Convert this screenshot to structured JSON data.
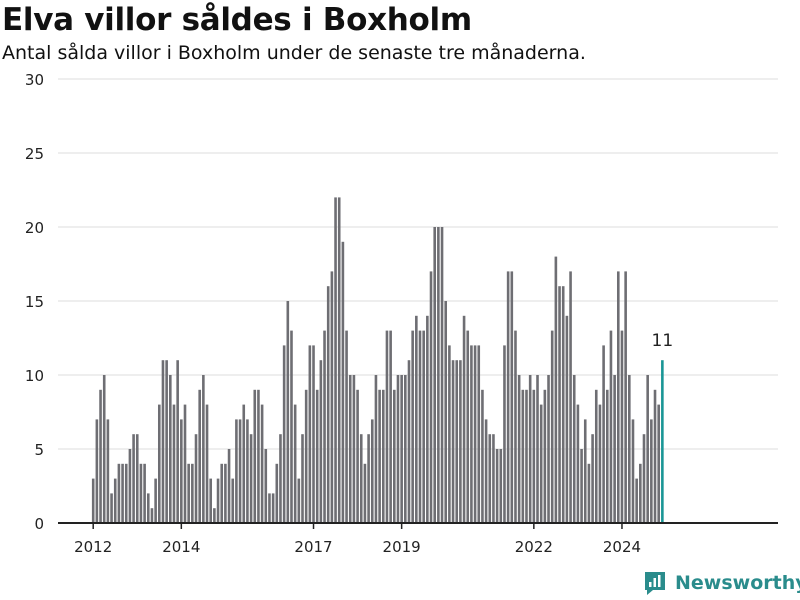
{
  "header": {
    "title": "Elva villor såldes i Boxholm",
    "subtitle": "Antal sålda villor i Boxholm under de senaste tre månaderna."
  },
  "brand": {
    "name": "Newsworthy"
  },
  "colors": {
    "bar": "#6e6e73",
    "highlight": "#1a9696",
    "grid": "#dddddd",
    "axis": "#222222"
  },
  "chart_data": {
    "type": "bar",
    "title": "Elva villor såldes i Boxholm",
    "subtitle": "Antal sålda villor i Boxholm under de senaste tre månaderna.",
    "xlabel": "",
    "ylabel": "",
    "ylim": [
      0,
      30
    ],
    "yticks": [
      0,
      5,
      10,
      15,
      20,
      25,
      30
    ],
    "xticks": [
      "2012",
      "2014",
      "2017",
      "2019",
      "2022",
      "2024"
    ],
    "grid": true,
    "start_period": "2012-01",
    "frequency": "monthly",
    "values": [
      3,
      7,
      9,
      10,
      7,
      2,
      3,
      4,
      4,
      4,
      5,
      6,
      6,
      4,
      4,
      2,
      1,
      3,
      8,
      11,
      11,
      10,
      8,
      11,
      7,
      8,
      4,
      4,
      6,
      9,
      10,
      8,
      3,
      1,
      3,
      4,
      4,
      5,
      3,
      7,
      7,
      8,
      7,
      6,
      9,
      9,
      8,
      5,
      2,
      2,
      4,
      6,
      12,
      15,
      13,
      8,
      3,
      6,
      9,
      12,
      12,
      9,
      11,
      13,
      16,
      17,
      22,
      22,
      19,
      13,
      10,
      10,
      9,
      6,
      4,
      6,
      7,
      10,
      9,
      9,
      13,
      13,
      9,
      10,
      10,
      10,
      11,
      13,
      14,
      13,
      13,
      14,
      17,
      20,
      20,
      20,
      15,
      12,
      11,
      11,
      11,
      14,
      13,
      12,
      12,
      12,
      9,
      7,
      6,
      6,
      5,
      5,
      12,
      17,
      17,
      13,
      10,
      9,
      9,
      10,
      9,
      10,
      8,
      9,
      10,
      13,
      18,
      16,
      16,
      14,
      17,
      10,
      8,
      5,
      7,
      4,
      6,
      9,
      8,
      12,
      9,
      13,
      10,
      17,
      13,
      17,
      10,
      7,
      3,
      4,
      6,
      10,
      7,
      9,
      8,
      11
    ],
    "last_label": "11"
  }
}
